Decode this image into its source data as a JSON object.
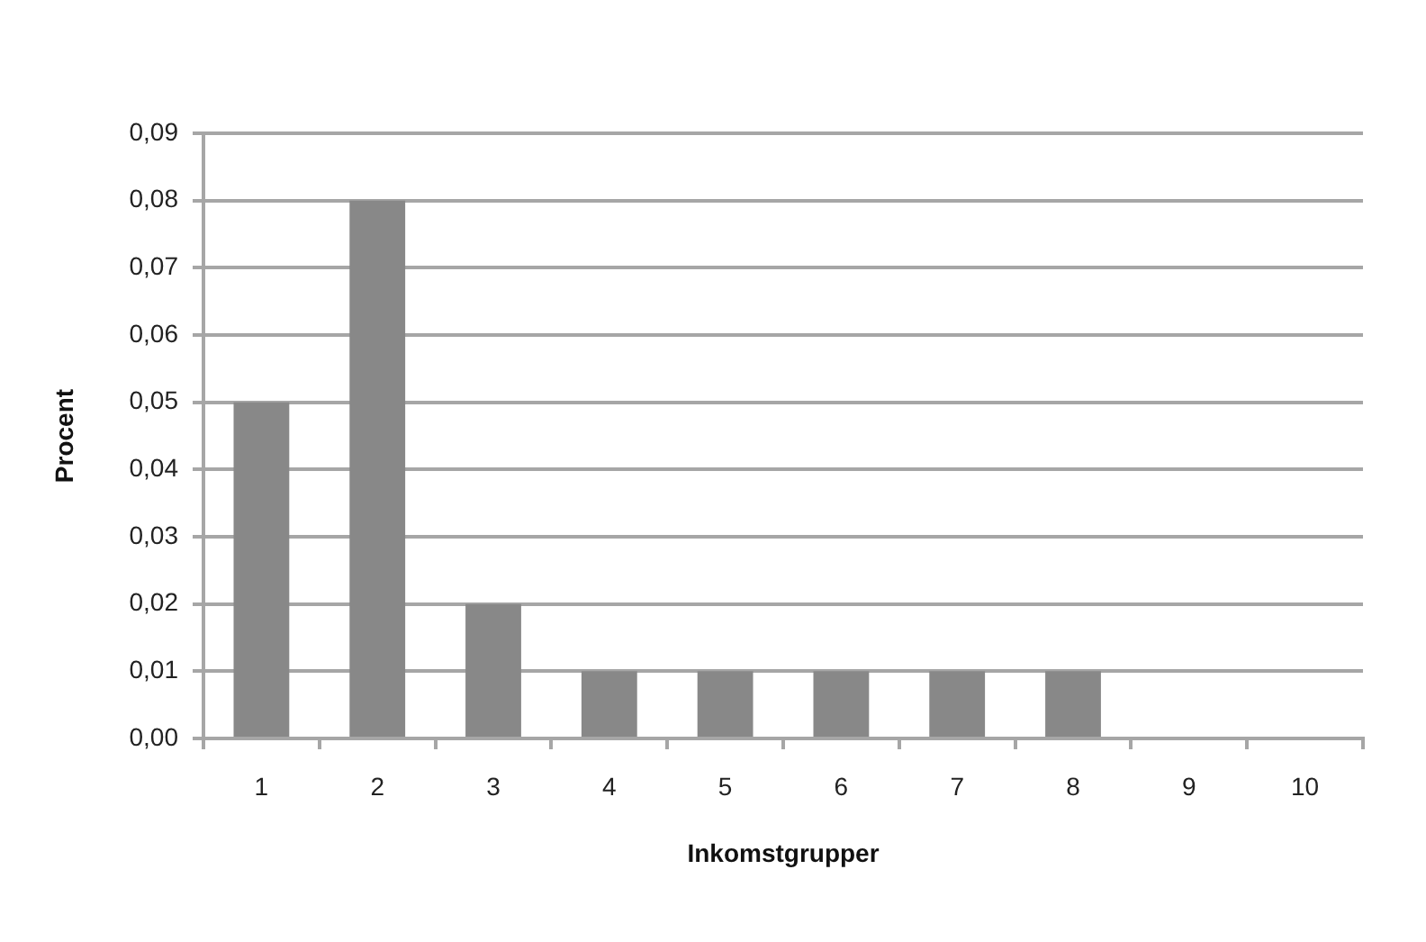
{
  "chart_data": {
    "type": "bar",
    "xlabel": "Inkomstgrupper",
    "ylabel": "Procent",
    "categories": [
      "1",
      "2",
      "3",
      "4",
      "5",
      "6",
      "7",
      "8",
      "9",
      "10"
    ],
    "values": [
      0.05,
      0.08,
      0.02,
      0.01,
      0.01,
      0.01,
      0.01,
      0.01,
      0,
      0
    ],
    "color": "#888888",
    "ylim": [
      0,
      0.09
    ],
    "yticks": [
      {
        "value": 0,
        "label": "0,00"
      },
      {
        "value": 0.01,
        "label": "0,01"
      },
      {
        "value": 0.02,
        "label": "0,02"
      },
      {
        "value": 0.03,
        "label": "0,03"
      },
      {
        "value": 0.04,
        "label": "0,04"
      },
      {
        "value": 0.05,
        "label": "0,05"
      },
      {
        "value": 0.06,
        "label": "0,06"
      },
      {
        "value": 0.07,
        "label": "0,07"
      },
      {
        "value": 0.08,
        "label": "0,08"
      },
      {
        "value": 0.09,
        "label": "0,09"
      }
    ],
    "grid": "y",
    "legend": false
  }
}
